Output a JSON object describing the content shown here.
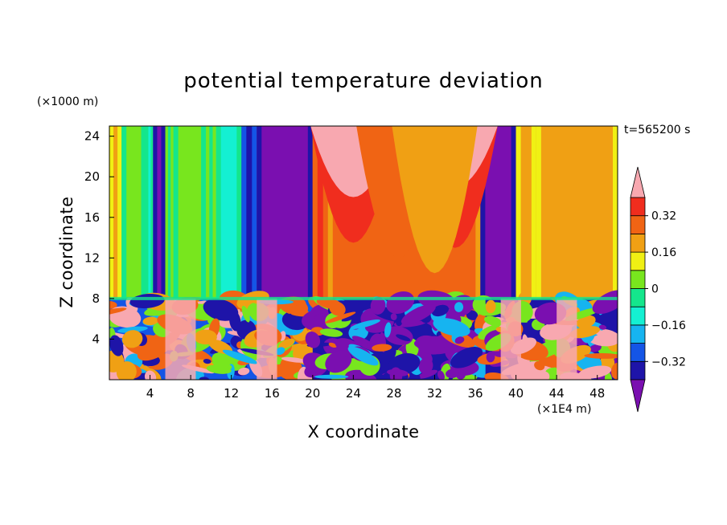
{
  "chart_data": {
    "type": "heatmap",
    "title": "potential temperature deviation",
    "xlabel": "X coordinate",
    "ylabel": "Z coordinate",
    "x_unit": "(×1E4 m)",
    "y_unit": "(×1000 m)",
    "time_label": "t=565200 s",
    "xlim": [
      0,
      50
    ],
    "ylim": [
      0,
      25
    ],
    "x_ticks": [
      4,
      8,
      12,
      16,
      20,
      24,
      28,
      32,
      36,
      40,
      44,
      48
    ],
    "y_ticks": [
      4,
      8,
      12,
      16,
      20,
      24
    ],
    "colorbar": {
      "levels": [
        -0.48,
        -0.4,
        -0.32,
        -0.24,
        -0.16,
        -0.08,
        0,
        0.08,
        0.16,
        0.24,
        0.32,
        0.4
      ],
      "tick_labels": [
        "0.32",
        "0.16",
        "0",
        "−0.16",
        "−0.32"
      ],
      "tick_values": [
        0.32,
        0.16,
        0,
        -0.16,
        -0.32
      ],
      "colors": [
        "#7a0fb0",
        "#1e14a8",
        "#1455e6",
        "#16b4f0",
        "#14f0d2",
        "#14e68c",
        "#78e61e",
        "#f0f014",
        "#f0a014",
        "#f06414",
        "#f02d1e",
        "#f8a8b0"
      ],
      "extend": "both"
    },
    "upper_layer_columns": [
      {
        "x": [
          0,
          1.2
        ],
        "value": 0.16
      },
      {
        "x": [
          1.2,
          3.6
        ],
        "value": 0.04
      },
      {
        "x": [
          3.6,
          4.3
        ],
        "value": -0.12
      },
      {
        "x": [
          4.3,
          5.5
        ],
        "value": -0.44
      },
      {
        "x": [
          5.5,
          6.3
        ],
        "value": -0.04
      },
      {
        "x": [
          6.3,
          9.5
        ],
        "value": 0.04
      },
      {
        "x": [
          9.5,
          10.5
        ],
        "value": -0.04
      },
      {
        "x": [
          10.5,
          13.0
        ],
        "value": -0.12
      },
      {
        "x": [
          13.0,
          14.5
        ],
        "value": -0.36
      },
      {
        "x": [
          14.5,
          20.0
        ],
        "value": -0.44
      },
      {
        "x": [
          20.0,
          21.5
        ],
        "value": 0.36
      },
      {
        "x": [
          21.5,
          36.5
        ],
        "value": 0.28
      },
      {
        "x": [
          36.5,
          40.0
        ],
        "value": -0.44
      },
      {
        "x": [
          40.0,
          42.0
        ],
        "value": 0.2
      },
      {
        "x": [
          42.0,
          50.0
        ],
        "value": 0.2
      }
    ]
  }
}
